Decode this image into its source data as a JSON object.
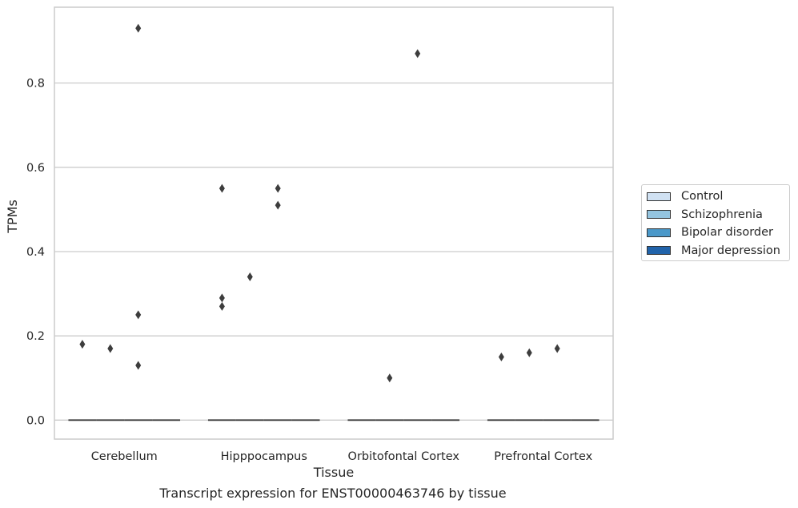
{
  "chart_data": {
    "type": "box",
    "title": "",
    "caption": "Transcript expression for ENST00000463746 by tissue",
    "xlabel": "Tissue",
    "ylabel": "TPMs",
    "ylim": [
      -0.045,
      0.98
    ],
    "yticks": [
      0.0,
      0.2,
      0.4,
      0.6,
      0.8
    ],
    "yticklabels": [
      "0.0",
      "0.2",
      "0.4",
      "0.6",
      "0.8"
    ],
    "grid": "horizontal",
    "legend_placement": "outside-right",
    "categories": [
      "Cerebellum",
      "Hipppocampus",
      "Orbitofontal Cortex",
      "Prefrontal Cortex"
    ],
    "series": [
      {
        "name": "Control",
        "color": "#d0e1f2",
        "boxes": [
          {
            "median": 0
          },
          {
            "median": 0
          },
          {
            "median": 0
          },
          {
            "median": 0
          }
        ],
        "outliers": [
          [
            0.18
          ],
          [
            0.55,
            0.29,
            0.27
          ],
          [],
          [
            0.15
          ]
        ]
      },
      {
        "name": "Schizophrenia",
        "color": "#94c4df",
        "boxes": [
          {
            "median": 0
          },
          {
            "median": 0
          },
          {
            "median": 0
          },
          {
            "median": 0
          }
        ],
        "outliers": [
          [
            0.17
          ],
          [
            0.34
          ],
          [
            0.1
          ],
          [
            0.16
          ]
        ]
      },
      {
        "name": "Bipolar disorder",
        "color": "#4a98c9",
        "boxes": [
          {
            "median": 0
          },
          {
            "median": 0
          },
          {
            "median": 0
          },
          {
            "median": 0
          }
        ],
        "outliers": [
          [
            0.93,
            0.25,
            0.13
          ],
          [
            0.55,
            0.51
          ],
          [
            0.87
          ],
          [
            0.17
          ]
        ]
      },
      {
        "name": "Major depression",
        "color": "#2163aa",
        "boxes": [
          {
            "median": 0
          },
          {
            "median": 0
          },
          {
            "median": 0
          },
          {
            "median": 0
          }
        ],
        "outliers": [
          [],
          [],
          [],
          []
        ]
      }
    ]
  }
}
